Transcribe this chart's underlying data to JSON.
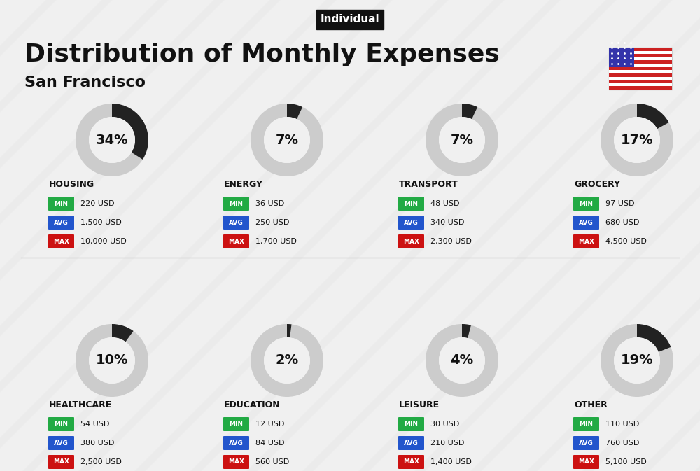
{
  "title": "Distribution of Monthly Expenses",
  "subtitle": "San Francisco",
  "tag": "Individual",
  "bg_color": "#f0f0f0",
  "categories": [
    {
      "name": "HOUSING",
      "percent": 34,
      "min": "220 USD",
      "avg": "1,500 USD",
      "max": "10,000 USD",
      "col": 0,
      "row": 0
    },
    {
      "name": "ENERGY",
      "percent": 7,
      "min": "36 USD",
      "avg": "250 USD",
      "max": "1,700 USD",
      "col": 1,
      "row": 0
    },
    {
      "name": "TRANSPORT",
      "percent": 7,
      "min": "48 USD",
      "avg": "340 USD",
      "max": "2,300 USD",
      "col": 2,
      "row": 0
    },
    {
      "name": "GROCERY",
      "percent": 17,
      "min": "97 USD",
      "avg": "680 USD",
      "max": "4,500 USD",
      "col": 3,
      "row": 0
    },
    {
      "name": "HEALTHCARE",
      "percent": 10,
      "min": "54 USD",
      "avg": "380 USD",
      "max": "2,500 USD",
      "col": 0,
      "row": 1
    },
    {
      "name": "EDUCATION",
      "percent": 2,
      "min": "12 USD",
      "avg": "84 USD",
      "max": "560 USD",
      "col": 1,
      "row": 1
    },
    {
      "name": "LEISURE",
      "percent": 4,
      "min": "30 USD",
      "avg": "210 USD",
      "max": "1,400 USD",
      "col": 2,
      "row": 1
    },
    {
      "name": "OTHER",
      "percent": 19,
      "min": "110 USD",
      "avg": "760 USD",
      "max": "5,100 USD",
      "col": 3,
      "row": 1
    }
  ],
  "min_color": "#22aa44",
  "avg_color": "#2255cc",
  "max_color": "#cc1111",
  "label_color_text": "#ffffff",
  "ring_color": "#222222",
  "ring_bg_color": "#cccccc",
  "text_color": "#111111"
}
